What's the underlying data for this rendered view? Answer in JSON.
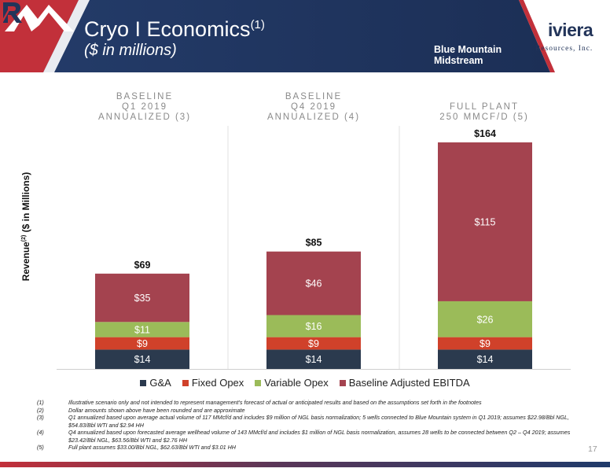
{
  "header": {
    "title": "Cryo I Economics",
    "title_sup": "(1)",
    "subtitle": "($ in millions)"
  },
  "logos": {
    "blue_mountain": {
      "line1": "Blue Mountain",
      "line2": "Midstream",
      "icon": "mountain-logo-icon"
    },
    "riviera": {
      "name": "iviera",
      "sub": "Resources, Inc.",
      "icon": "riviera-r-icon"
    }
  },
  "columns": [
    {
      "line1": "BASELINE",
      "line2": "Q1 2019",
      "line3": "ANNUALIZED (3)"
    },
    {
      "line1": "BASELINE",
      "line2": "Q4 2019",
      "line3": "ANNUALIZED (4)"
    },
    {
      "line1": "FULL PLANT",
      "line2": "250 MMCF/D (5)",
      "line3": ""
    }
  ],
  "y_axis_label": {
    "main": "Revenue",
    "sup": "(2)",
    "rest": " ($ in Millions)"
  },
  "chart_data": {
    "type": "bar",
    "stacked": true,
    "categories": [
      "Baseline Q1 2019 Annualized (3)",
      "Baseline Q4 2019 Annualized (4)",
      "Full Plant 250 MMCF/D (5)"
    ],
    "series": [
      {
        "name": "G&A",
        "color": "#2b3a4e",
        "values": [
          14,
          14,
          14
        ],
        "labels": [
          "$14",
          "$14",
          "$14"
        ]
      },
      {
        "name": "Fixed Opex",
        "color": "#d0412a",
        "values": [
          9,
          9,
          9
        ],
        "labels": [
          "$9",
          "$9",
          "$9"
        ]
      },
      {
        "name": "Variable Opex",
        "color": "#9bbb59",
        "values": [
          11,
          16,
          26
        ],
        "labels": [
          "$11",
          "$16",
          "$26"
        ]
      },
      {
        "name": "Baseline Adjusted EBITDA",
        "color": "#a4434f",
        "values": [
          35,
          46,
          115
        ],
        "labels": [
          "$35",
          "$46",
          "$115"
        ]
      }
    ],
    "totals": [
      69,
      85,
      164
    ],
    "total_labels": [
      "$69",
      "$85",
      "$164"
    ],
    "ylim": [
      0,
      180
    ],
    "legend_position": "bottom"
  },
  "footnotes": [
    {
      "num": "(1)",
      "text": "Illustrative scenario only and not intended to represent management's forecast of actual or anticipated results and based on the assumptions set forth in the footnotes"
    },
    {
      "num": "(2)",
      "text": "Dollar amounts shown above have been rounded and are approximate"
    },
    {
      "num": "(3)",
      "text": "Q1 annualized based upon average actual volume of 117 MMcf/d and includes $9 million of NGL basis normalization; 5 wells connected to Blue Mountain system in Q1 2019; assumes $22.98/Bbl NGL, $54.83/Bbl WTI and $2.94 HH"
    },
    {
      "num": "(4)",
      "text": "Q4 annualized based upon forecasted average wellhead volume of 143 MMcf/d and includes $1 million of NGL basis normalization, assumes 28 wells to be connected between Q2 – Q4 2019; assumes $23.42/Bbl NGL, $63.56/Bbl WTI and $2.76 HH"
    },
    {
      "num": "(5)",
      "text": "Full plant assumes $33.00/Bbl NGL, $62.63/Bbl WTI and $3.01 HH"
    }
  ],
  "page_number": "17"
}
